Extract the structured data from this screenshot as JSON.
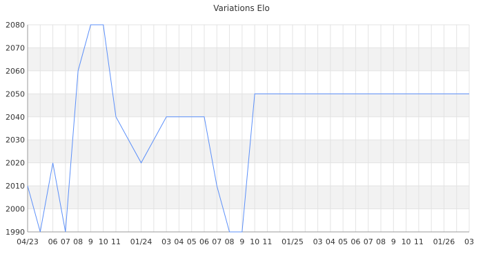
{
  "chart_data": {
    "type": "line",
    "title": "Variations Elo",
    "xlabel": "",
    "ylabel": "",
    "ylim": [
      1990,
      2080
    ],
    "yticks": [
      1990,
      2000,
      2010,
      2020,
      2030,
      2040,
      2050,
      2060,
      2070,
      2080
    ],
    "grid": true,
    "banded_background": true,
    "x_tick_labels": [
      "04/23",
      "",
      "06",
      "07",
      "08",
      "9",
      "10",
      "11",
      "",
      "01/24",
      "",
      "03",
      "04",
      "05",
      "06",
      "07",
      "08",
      "9",
      "10",
      "11",
      "",
      "01/25",
      "",
      "03",
      "04",
      "05",
      "06",
      "07",
      "08",
      "9",
      "10",
      "11",
      "",
      "01/26",
      "",
      "03"
    ],
    "series": [
      {
        "values": [
          2010,
          1990,
          2020,
          1990,
          2060,
          2080,
          2080,
          2040,
          2030,
          2020,
          2030,
          2040,
          2040,
          2040,
          2040,
          2010,
          1990,
          1990,
          2050,
          2050,
          2050,
          2050,
          2050,
          2050,
          2050,
          2050,
          2050,
          2050,
          2050,
          2050,
          2050,
          2050,
          2050,
          2050,
          2050,
          2050
        ]
      }
    ],
    "colors": {
      "line": "#5b8ff9",
      "band": "#f2f2f2",
      "grid": "#e3e3e3",
      "axis": "#999999"
    }
  }
}
